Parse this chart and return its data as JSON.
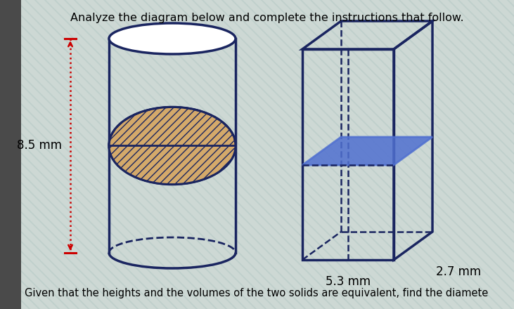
{
  "title": "Analyze the diagram below and complete the instructions that follow.",
  "subtitle": "Given that the heights and the volumes of the two solids are equivalent, find the diamete",
  "background_color": "#cdd8d4",
  "stripe_color": "#b8ccc8",
  "title_fontsize": 11.5,
  "label_85": "8.5 mm",
  "label_27": "2.7 mm",
  "label_53": "5.3 mm",
  "cyl_color": "#1a2560",
  "ellipse_fill": "#d4a96a",
  "box_color": "#1a2560",
  "cs_color": "#5070d0",
  "arrow_color": "#cc0000",
  "left_bar_color": "#444444",
  "left_bar_width": 0.18
}
